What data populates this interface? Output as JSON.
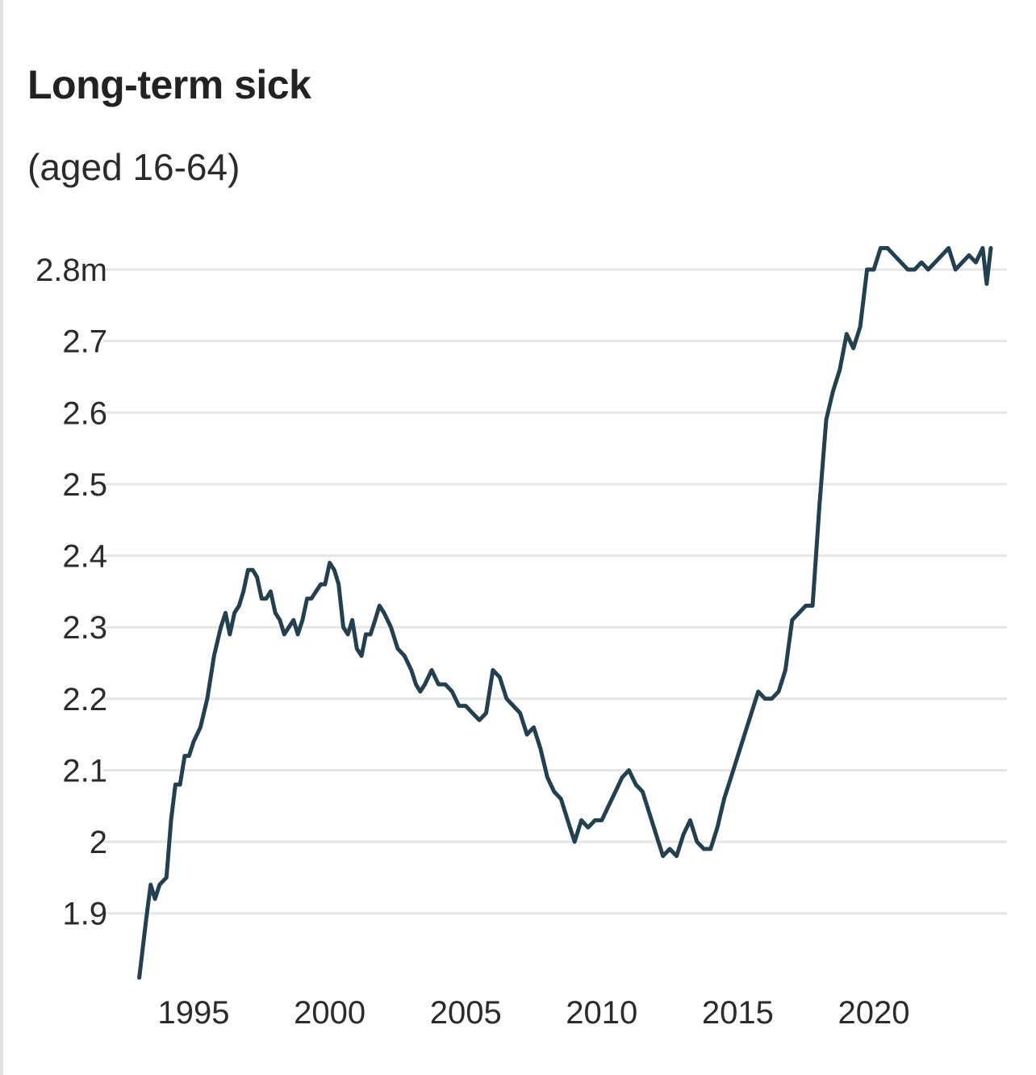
{
  "chart": {
    "title": "Long-term sick",
    "subtitle": "(aged 16-64)"
  },
  "colors": {
    "line": "#24404f",
    "grid": "#e6e6e6",
    "text": "#2b2b2b"
  },
  "chart_data": {
    "type": "line",
    "title": "Long-term sick",
    "subtitle": "(aged 16-64)",
    "xlabel": "",
    "ylabel": "",
    "xlim": [
      1993,
      2024.6
    ],
    "ylim": [
      1.82,
      2.84
    ],
    "grid": "horizontal",
    "legend": "none",
    "y_ticks": [
      {
        "value": 1.9,
        "label": "1.9"
      },
      {
        "value": 2.0,
        "label": "2"
      },
      {
        "value": 2.1,
        "label": "2.1"
      },
      {
        "value": 2.2,
        "label": "2.2"
      },
      {
        "value": 2.3,
        "label": "2.3"
      },
      {
        "value": 2.4,
        "label": "2.4"
      },
      {
        "value": 2.5,
        "label": "2.5"
      },
      {
        "value": 2.6,
        "label": "2.6"
      },
      {
        "value": 2.7,
        "label": "2.7"
      },
      {
        "value": 2.8,
        "label": "2.8m"
      }
    ],
    "x_ticks": [
      {
        "value": 1995,
        "label": "1995"
      },
      {
        "value": 2000,
        "label": "2000"
      },
      {
        "value": 2005,
        "label": "2005"
      },
      {
        "value": 2010,
        "label": "2010"
      },
      {
        "value": 2015,
        "label": "2015"
      },
      {
        "value": 2020,
        "label": "2020"
      }
    ],
    "series": [
      {
        "x": [
          1993.0,
          1993.25,
          1993.42,
          1993.58,
          1993.75,
          1994.0,
          1994.17,
          1994.33,
          1994.5,
          1994.67,
          1994.83,
          1995.0,
          1995.25,
          1995.5,
          1995.75,
          1996.0,
          1996.17,
          1996.33,
          1996.5,
          1996.67,
          1996.83,
          1997.0,
          1997.17,
          1997.33,
          1997.5,
          1997.67,
          1997.83,
          1998.0,
          1998.17,
          1998.33,
          1998.5,
          1998.67,
          1998.83,
          1999.0,
          1999.17,
          1999.33,
          1999.5,
          1999.67,
          1999.83,
          2000.0,
          2000.17,
          2000.33,
          2000.5,
          2000.67,
          2000.83,
          2001.0,
          2001.17,
          2001.33,
          2001.5,
          2001.67,
          2001.83,
          2002.0,
          2002.25,
          2002.5,
          2002.75,
          2003.0,
          2003.17,
          2003.33,
          2003.5,
          2003.75,
          2004.0,
          2004.25,
          2004.5,
          2004.75,
          2005.0,
          2005.25,
          2005.5,
          2005.75,
          2006.0,
          2006.25,
          2006.5,
          2006.75,
          2007.0,
          2007.25,
          2007.5,
          2007.75,
          2008.0,
          2008.25,
          2008.5,
          2008.75,
          2009.0,
          2009.25,
          2009.5,
          2009.75,
          2010.0,
          2010.25,
          2010.5,
          2010.75,
          2011.0,
          2011.25,
          2011.5,
          2011.75,
          2012.0,
          2012.25,
          2012.5,
          2012.75,
          2013.0,
          2013.25,
          2013.5,
          2013.75,
          2014.0,
          2014.25,
          2014.5,
          2014.75,
          2015.0,
          2015.25,
          2015.5,
          2015.75,
          2016.0,
          2016.25,
          2016.5,
          2016.75,
          2017.0,
          2017.25,
          2017.5,
          2017.75,
          2018.0,
          2018.25,
          2018.5,
          2018.75,
          2019.0,
          2019.25,
          2019.5,
          2019.75,
          2020.0,
          2020.25,
          2020.5,
          2020.75,
          2021.0,
          2021.25,
          2021.5,
          2021.75,
          2022.0,
          2022.25,
          2022.5,
          2022.75,
          2023.0,
          2023.25,
          2023.5,
          2023.75,
          2024.0,
          2024.15,
          2024.3
        ],
        "values": [
          1.81,
          1.89,
          1.94,
          1.92,
          1.94,
          1.95,
          2.03,
          2.08,
          2.08,
          2.12,
          2.12,
          2.14,
          2.16,
          2.2,
          2.26,
          2.3,
          2.32,
          2.29,
          2.32,
          2.33,
          2.35,
          2.38,
          2.38,
          2.37,
          2.34,
          2.34,
          2.35,
          2.32,
          2.31,
          2.29,
          2.3,
          2.31,
          2.29,
          2.31,
          2.34,
          2.34,
          2.35,
          2.36,
          2.36,
          2.39,
          2.38,
          2.36,
          2.3,
          2.29,
          2.31,
          2.27,
          2.26,
          2.29,
          2.29,
          2.31,
          2.33,
          2.32,
          2.3,
          2.27,
          2.26,
          2.24,
          2.22,
          2.21,
          2.22,
          2.24,
          2.22,
          2.22,
          2.21,
          2.19,
          2.19,
          2.18,
          2.17,
          2.18,
          2.24,
          2.23,
          2.2,
          2.19,
          2.18,
          2.15,
          2.16,
          2.13,
          2.09,
          2.07,
          2.06,
          2.03,
          2.0,
          2.03,
          2.02,
          2.03,
          2.03,
          2.05,
          2.07,
          2.09,
          2.1,
          2.08,
          2.07,
          2.04,
          2.01,
          1.98,
          1.99,
          1.98,
          2.01,
          2.03,
          2.0,
          1.99,
          1.99,
          2.02,
          2.06,
          2.09,
          2.12,
          2.15,
          2.18,
          2.21,
          2.2,
          2.2,
          2.21,
          2.24,
          2.31,
          2.32,
          2.33,
          2.33,
          2.47,
          2.59,
          2.63,
          2.66,
          2.71,
          2.69,
          2.72,
          2.8,
          2.8,
          2.83,
          2.83,
          2.82,
          2.81,
          2.8,
          2.8,
          2.81,
          2.8,
          2.81,
          2.82,
          2.83,
          2.8,
          2.81,
          2.82,
          2.81,
          2.83,
          2.78,
          2.83
        ]
      }
    ]
  }
}
